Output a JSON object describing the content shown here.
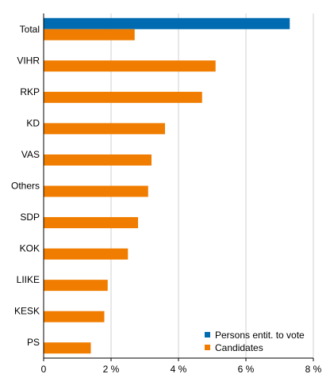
{
  "chart_data": {
    "type": "bar",
    "orientation": "horizontal",
    "categories": [
      "Total",
      "VIHR",
      "RKP",
      "KD",
      "VAS",
      "Others",
      "SDP",
      "KOK",
      "LIIKE",
      "KESK",
      "PS"
    ],
    "series": [
      {
        "name": "Persons entit. to vote",
        "color": "#006bb0",
        "values": [
          7.3,
          null,
          null,
          null,
          null,
          null,
          null,
          null,
          null,
          null,
          null
        ]
      },
      {
        "name": "Candidates",
        "color": "#f07d00",
        "values": [
          2.7,
          5.1,
          4.7,
          3.6,
          3.2,
          3.1,
          2.8,
          2.5,
          1.9,
          1.8,
          1.4
        ]
      }
    ],
    "x_ticks": [
      {
        "value": 0,
        "label": "0"
      },
      {
        "value": 2,
        "label": "2 %"
      },
      {
        "value": 4,
        "label": "4 %"
      },
      {
        "value": 6,
        "label": "6 %"
      },
      {
        "value": 8,
        "label": "8 %"
      }
    ],
    "xlim": [
      0,
      8
    ],
    "title": "",
    "xlabel": "",
    "ylabel": "",
    "grid": true,
    "legend_position": "bottom-right"
  }
}
